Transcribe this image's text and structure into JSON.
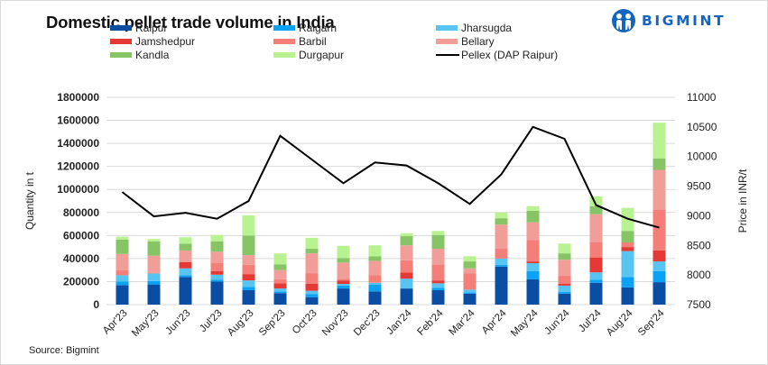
{
  "header": {
    "title": "Domestic pellet trade volume in India",
    "logo_text": "BIGMINT"
  },
  "source": "Source: Bigmint",
  "chart_data": {
    "type": "bar",
    "stacked": true,
    "title": "Domestic pellet trade volume in India",
    "xlabel": "",
    "ylabel": "Quantity in t",
    "y2label": "Price in INR/t",
    "ylim": [
      0,
      1800000
    ],
    "y2lim": [
      7500,
      11000
    ],
    "yticks": [
      "0",
      "200000",
      "400000",
      "600000",
      "800000",
      "1000000",
      "1200000",
      "1400000",
      "1600000",
      "1800000"
    ],
    "y2ticks": [
      "7500",
      "8000",
      "8500",
      "9000",
      "9500",
      "10000",
      "10500",
      "11000"
    ],
    "grid": true,
    "legend_position": "top",
    "categories": [
      "Apr'23",
      "May'23",
      "Jun'23",
      "Jul'23",
      "Aug'23",
      "Sep'23",
      "Oct'23",
      "Nov'23",
      "Dec'23",
      "Jan'24",
      "Feb'24",
      "Mar'24",
      "Apr'24",
      "May'24",
      "Jun'24",
      "Jul'24",
      "Aug'24",
      "Sep'24"
    ],
    "series": [
      {
        "name": "Raipur",
        "color": "#0a4ea3",
        "values": [
          170000,
          175000,
          240000,
          200000,
          125000,
          100000,
          65000,
          140000,
          115000,
          140000,
          125000,
          95000,
          330000,
          220000,
          95000,
          190000,
          150000,
          195000
        ]
      },
      {
        "name": "Raigarh",
        "color": "#0aa2f5",
        "values": [
          30000,
          30000,
          15000,
          15000,
          30000,
          15000,
          25000,
          25000,
          60000,
          0,
          20000,
          10000,
          15000,
          70000,
          15000,
          25000,
          90000,
          95000
        ]
      },
      {
        "name": "Jharsugda",
        "color": "#58c4f2",
        "values": [
          55000,
          65000,
          60000,
          45000,
          55000,
          25000,
          30000,
          15000,
          15000,
          85000,
          40000,
          25000,
          55000,
          70000,
          55000,
          65000,
          225000,
          85000
        ]
      },
      {
        "name": "Jamshedpur",
        "color": "#e53935",
        "values": [
          0,
          0,
          55000,
          30000,
          55000,
          45000,
          60000,
          30000,
          0,
          55000,
          25000,
          0,
          0,
          15000,
          15000,
          130000,
          35000,
          95000
        ]
      },
      {
        "name": "Barbil",
        "color": "#f47f78",
        "values": [
          45000,
          0,
          0,
          70000,
          80000,
          35000,
          90000,
          15000,
          65000,
          105000,
          140000,
          140000,
          85000,
          185000,
          70000,
          130000,
          40000,
          355000
        ]
      },
      {
        "name": "Bellary",
        "color": "#f09e97",
        "values": [
          140000,
          155000,
          100000,
          100000,
          85000,
          80000,
          175000,
          140000,
          125000,
          130000,
          135000,
          45000,
          210000,
          155000,
          140000,
          245000,
          0,
          345000
        ]
      },
      {
        "name": "Kandla",
        "color": "#86c465",
        "values": [
          125000,
          125000,
          60000,
          90000,
          170000,
          50000,
          40000,
          40000,
          40000,
          80000,
          120000,
          60000,
          55000,
          100000,
          55000,
          70000,
          100000,
          100000
        ]
      },
      {
        "name": "Durgapur",
        "color": "#b9f290",
        "values": [
          25000,
          20000,
          55000,
          55000,
          175000,
          95000,
          95000,
          105000,
          95000,
          25000,
          35000,
          45000,
          50000,
          40000,
          85000,
          85000,
          200000,
          310000
        ]
      }
    ],
    "line_series": {
      "name": "Pellex (DAP Raipur)",
      "axis": "right",
      "color": "#000000",
      "values": [
        9400,
        8990,
        9050,
        8950,
        9250,
        10350,
        9950,
        9550,
        9900,
        9850,
        9550,
        9200,
        9700,
        10500,
        10300,
        9180,
        8950,
        8800
      ]
    }
  }
}
